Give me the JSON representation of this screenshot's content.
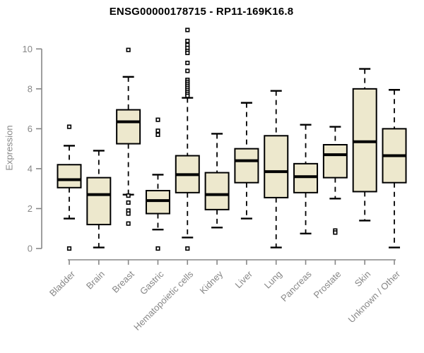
{
  "chart_data": {
    "type": "boxplot",
    "title": "ENSG00000178715 - RP11-169K16.8",
    "xlabel": "",
    "ylabel": "Expression",
    "ylim": [
      0,
      10
    ],
    "yticks": [
      0,
      2,
      4,
      6,
      8,
      10
    ],
    "grid": false,
    "whisker_linestyle": "dashed",
    "outlier_marker": "open-square",
    "box_fill": "#EDE8CD",
    "box_stroke": "#000000",
    "median_color": "#000000",
    "axis_color": "#878787",
    "tick_text_color": "#878787",
    "title_color": "#000000",
    "categories": [
      "Bladder",
      "Brain",
      "Breast",
      "Gastric",
      "Hematopoietic cells",
      "Kidney",
      "Liver",
      "Lung",
      "Pancreas",
      "Prostate",
      "Skin",
      "Unknown / Other"
    ],
    "series": [
      {
        "category": "Bladder",
        "whisker_low": 1.5,
        "q1": 3.05,
        "median": 3.45,
        "q3": 4.2,
        "whisker_high": 5.15,
        "outliers": [
          6.1,
          0
        ]
      },
      {
        "category": "Brain",
        "whisker_low": 0.05,
        "q1": 1.2,
        "median": 2.7,
        "q3": 3.55,
        "whisker_high": 4.9,
        "outliers": []
      },
      {
        "category": "Breast",
        "whisker_low": 2.7,
        "q1": 5.25,
        "median": 6.35,
        "q3": 6.95,
        "whisker_high": 8.6,
        "outliers": [
          9.95,
          2.65,
          2.3,
          1.9,
          1.75,
          1.25
        ]
      },
      {
        "category": "Gastric",
        "whisker_low": 0.95,
        "q1": 1.75,
        "median": 2.4,
        "q3": 2.9,
        "whisker_high": 3.7,
        "outliers": [
          6.45,
          5.9,
          5.7,
          0
        ]
      },
      {
        "category": "Hematopoietic cells",
        "whisker_low": 0.55,
        "q1": 2.8,
        "median": 3.7,
        "q3": 4.65,
        "whisker_high": 7.55,
        "outliers": [
          10.95,
          10.4,
          10.2,
          10.05,
          9.9,
          9.8,
          9.3,
          8.9,
          8.45,
          8.35,
          8.25,
          8.15,
          8.05,
          7.95,
          7.85,
          7.75,
          7.65,
          0
        ]
      },
      {
        "category": "Kidney",
        "whisker_low": 1.05,
        "q1": 1.95,
        "median": 2.7,
        "q3": 3.8,
        "whisker_high": 5.75,
        "outliers": []
      },
      {
        "category": "Liver",
        "whisker_low": 1.5,
        "q1": 3.3,
        "median": 4.4,
        "q3": 5.0,
        "whisker_high": 7.3,
        "outliers": []
      },
      {
        "category": "Lung",
        "whisker_low": 0.05,
        "q1": 2.55,
        "median": 3.85,
        "q3": 5.65,
        "whisker_high": 7.9,
        "outliers": []
      },
      {
        "category": "Pancreas",
        "whisker_low": 0.75,
        "q1": 2.8,
        "median": 3.6,
        "q3": 4.25,
        "whisker_high": 6.2,
        "outliers": []
      },
      {
        "category": "Prostate",
        "whisker_low": 2.5,
        "q1": 3.55,
        "median": 4.7,
        "q3": 5.2,
        "whisker_high": 6.1,
        "outliers": [
          0.9,
          0.8
        ]
      },
      {
        "category": "Skin",
        "whisker_low": 1.4,
        "q1": 2.85,
        "median": 5.35,
        "q3": 8.0,
        "whisker_high": 9.0,
        "outliers": []
      },
      {
        "category": "Unknown / Other",
        "whisker_low": 0.05,
        "q1": 3.3,
        "median": 4.65,
        "q3": 6.0,
        "whisker_high": 7.95,
        "outliers": []
      }
    ]
  }
}
